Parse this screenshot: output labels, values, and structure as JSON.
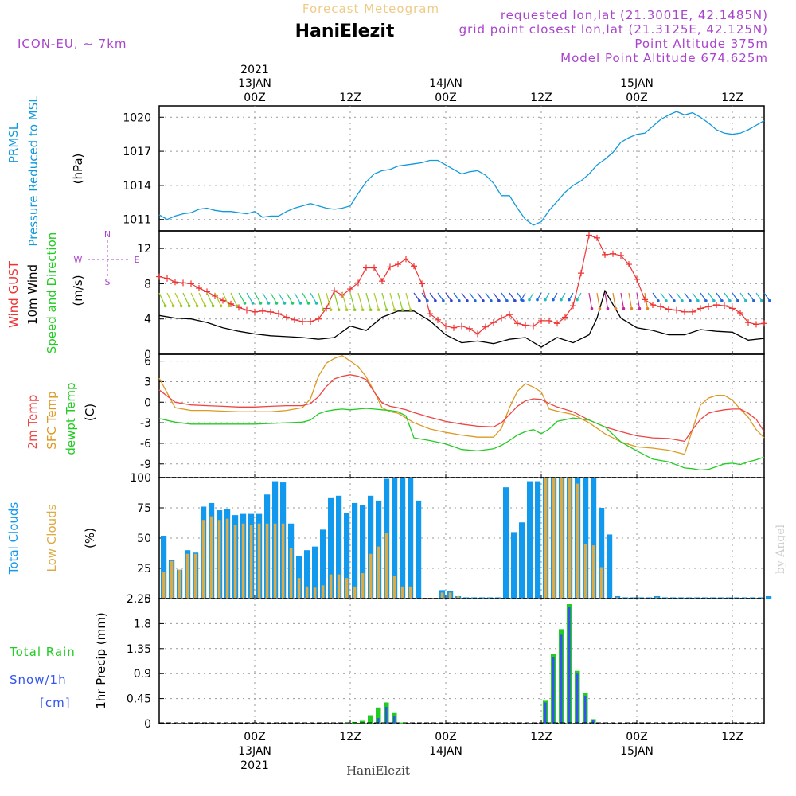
{
  "header": {
    "product": "Forecast Meteogram",
    "site": "HaniElezit",
    "model": "ICON-EU, ~ 7km",
    "requested": "requested lon,lat (21.3001E, 42.1485N)",
    "gridpoint": "grid point closest lon,lat (21.3125E, 42.125N)",
    "point_alt": "Point Altitude 375m",
    "model_alt": "Model Point Altitude 674.625m",
    "footer_site": "HaniElezit",
    "credit": "by Angel"
  },
  "time_axis": {
    "top": [
      {
        "h": 12,
        "line1": "2021",
        "line2": "13JAN",
        "line3": "00Z"
      },
      {
        "h": 24,
        "line3": "12Z"
      },
      {
        "h": 36,
        "line2": "14JAN",
        "line3": "00Z"
      },
      {
        "h": 48,
        "line3": "12Z"
      },
      {
        "h": 60,
        "line2": "15JAN",
        "line3": "00Z"
      },
      {
        "h": 72,
        "line3": "12Z"
      }
    ],
    "bottom": [
      {
        "h": 12,
        "line1": "00Z",
        "line2": "13JAN",
        "line3": "2021"
      },
      {
        "h": 24,
        "line1": "12Z"
      },
      {
        "h": 36,
        "line1": "00Z",
        "line2": "14JAN"
      },
      {
        "h": 48,
        "line1": "12Z"
      },
      {
        "h": 60,
        "line1": "00Z",
        "line2": "15JAN"
      },
      {
        "h": 72,
        "line1": "12Z"
      }
    ]
  },
  "labels": {
    "p1": [
      "PRMSL",
      "Pressure Reduced to MSL",
      "(hPa)"
    ],
    "p2": [
      "Wind GUST",
      "10m Wind",
      "Speed and Direction",
      "(m/s)"
    ],
    "compass": [
      "N",
      "S",
      "W",
      "E"
    ],
    "p3": [
      "2m Temp",
      "SFC Temp",
      "dewpt Temp",
      "(C)"
    ],
    "p4": [
      "Total Clouds",
      "Low Clouds",
      "(%)"
    ],
    "p5": [
      "Total Rain",
      "Snow/1h",
      "[cm]",
      "1hr Precip (mm)"
    ]
  },
  "colors": {
    "pressure": "#1199dd",
    "gust": "#ee3333",
    "wind": "#000000",
    "t2m": "#ee4444",
    "tsfc": "#dd9922",
    "tdew": "#22cc22",
    "clouds_total": "#1199ee",
    "clouds_low": "#ddaa44",
    "rain": "#22cc22",
    "snow": "#3355ee",
    "header_title": "#eecc88",
    "info": "#aa44cc"
  },
  "chart_data": [
    {
      "type": "line",
      "name": "pressure",
      "x_unit": "hours from 12 Jan 12Z",
      "ylim": [
        1010,
        1021
      ],
      "yticks": [
        1011,
        1014,
        1017,
        1020
      ],
      "x": [
        0,
        1,
        2,
        3,
        4,
        5,
        6,
        7,
        8,
        9,
        10,
        11,
        12,
        13,
        14,
        15,
        16,
        17,
        18,
        19,
        20,
        21,
        22,
        23,
        24,
        25,
        26,
        27,
        28,
        29,
        30,
        31,
        32,
        33,
        34,
        35,
        36,
        37,
        38,
        39,
        40,
        41,
        42,
        43,
        44,
        45,
        46,
        47,
        48,
        49,
        50,
        51,
        52,
        53,
        54,
        55,
        56,
        57,
        58,
        59,
        60,
        61,
        62,
        63,
        64,
        65,
        66,
        67,
        68,
        69,
        70,
        71,
        72,
        73,
        74,
        75,
        76
      ],
      "values": [
        1011.4,
        1011.0,
        1011.3,
        1011.5,
        1011.6,
        1011.9,
        1012.0,
        1011.8,
        1011.7,
        1011.7,
        1011.6,
        1011.5,
        1011.7,
        1011.2,
        1011.3,
        1011.3,
        1011.7,
        1012.0,
        1012.2,
        1012.4,
        1012.2,
        1012.0,
        1011.9,
        1012.0,
        1012.2,
        1013.3,
        1014.3,
        1015.0,
        1015.3,
        1015.4,
        1015.7,
        1015.8,
        1015.9,
        1016.0,
        1016.2,
        1016.2,
        1015.8,
        1015.4,
        1015.0,
        1015.2,
        1015.3,
        1014.9,
        1014.2,
        1013.1,
        1013.1,
        1012.0,
        1011.0,
        1010.5,
        1010.8,
        1011.8,
        1012.6,
        1013.4,
        1014.0,
        1014.4,
        1015.0,
        1015.8,
        1016.3,
        1016.9,
        1017.8,
        1018.2,
        1018.5,
        1018.6,
        1019.2,
        1019.8,
        1020.2,
        1020.5,
        1020.2,
        1020.4,
        1020.0,
        1019.5,
        1018.9,
        1018.6,
        1018.5,
        1018.6,
        1018.9,
        1019.3,
        1019.7
      ]
    },
    {
      "type": "line",
      "name": "wind",
      "x_unit": "hours from 12 Jan 12Z",
      "ylim": [
        0,
        14
      ],
      "yticks": [
        0,
        4,
        8,
        12
      ],
      "gust_x": [
        0,
        1,
        2,
        3,
        4,
        5,
        6,
        7,
        8,
        9,
        10,
        11,
        12,
        13,
        14,
        15,
        16,
        17,
        18,
        19,
        20,
        21,
        22,
        23,
        24,
        25,
        26,
        27,
        28,
        29,
        30,
        31,
        32,
        33,
        34,
        35,
        36,
        37,
        38,
        39,
        40,
        41,
        42,
        43,
        44,
        45,
        46,
        47,
        48,
        49,
        50,
        51,
        52,
        53,
        54,
        55,
        56,
        57,
        58,
        59,
        60,
        61,
        62,
        63,
        64,
        65,
        66,
        67,
        68,
        69,
        70,
        71,
        72,
        73,
        74,
        75,
        76
      ],
      "gust": [
        8.8,
        8.6,
        8.2,
        8.1,
        8.0,
        7.5,
        7.1,
        6.6,
        6.1,
        5.7,
        5.3,
        5.0,
        4.8,
        4.9,
        4.8,
        4.6,
        4.2,
        3.9,
        3.7,
        3.7,
        4.0,
        5.2,
        7.2,
        6.7,
        7.4,
        8.1,
        9.8,
        9.8,
        8.3,
        9.9,
        10.2,
        10.8,
        10.0,
        8.0,
        4.6,
        3.9,
        3.2,
        3.0,
        3.2,
        2.9,
        2.3,
        3.1,
        3.6,
        4.1,
        4.5,
        3.5,
        3.3,
        3.2,
        3.8,
        3.8,
        3.5,
        4.2,
        5.5,
        9.2,
        13.5,
        13.2,
        11.3,
        11.4,
        11.2,
        10.2,
        8.5,
        6.2,
        5.6,
        5.4,
        5.1,
        5.0,
        4.8,
        4.8,
        5.2,
        5.4,
        5.6,
        5.5,
        5.2,
        4.7,
        3.6,
        3.4,
        3.5
      ],
      "speed_x": [
        0,
        2,
        4,
        6,
        8,
        10,
        12,
        14,
        16,
        18,
        20,
        22,
        24,
        26,
        28,
        30,
        32,
        34,
        36,
        38,
        40,
        42,
        44,
        46,
        48,
        50,
        52,
        54,
        55,
        56,
        58,
        60,
        62,
        64,
        66,
        68,
        70,
        72,
        74,
        76
      ],
      "speed": [
        4.4,
        4.1,
        4.0,
        3.6,
        3.0,
        2.6,
        2.3,
        2.1,
        2.0,
        1.9,
        1.7,
        1.9,
        3.2,
        2.7,
        4.2,
        4.9,
        4.9,
        3.8,
        2.2,
        1.3,
        1.5,
        1.2,
        1.7,
        1.9,
        0.8,
        1.9,
        1.3,
        2.2,
        4.1,
        7.2,
        4.1,
        3.0,
        2.7,
        2.2,
        2.2,
        2.8,
        2.6,
        2.5,
        1.6,
        1.8
      ]
    },
    {
      "type": "line",
      "name": "temperature",
      "x_unit": "hours from 12 Jan 12Z",
      "ylim": [
        -11,
        7
      ],
      "yticks": [
        -9,
        -6,
        -3,
        0,
        3,
        6
      ],
      "x": [
        0,
        2,
        4,
        6,
        8,
        10,
        12,
        14,
        16,
        18,
        19,
        20,
        21,
        22,
        23,
        24,
        25,
        26,
        27,
        28,
        29,
        30,
        31,
        32,
        34,
        36,
        38,
        40,
        42,
        43,
        44,
        45,
        46,
        47,
        48,
        49,
        50,
        52,
        54,
        56,
        58,
        60,
        62,
        64,
        66,
        67,
        68,
        69,
        70,
        71,
        72,
        73,
        74,
        75,
        76
      ],
      "t2m": [
        1.8,
        0.0,
        -0.4,
        -0.5,
        -0.6,
        -0.7,
        -0.7,
        -0.6,
        -0.5,
        -0.5,
        -0.2,
        0.8,
        2.3,
        3.4,
        3.8,
        4.0,
        3.8,
        3.3,
        1.5,
        -0.1,
        -0.6,
        -0.8,
        -1.1,
        -1.5,
        -2.2,
        -2.8,
        -3.2,
        -3.5,
        -3.6,
        -3.0,
        -1.8,
        -0.6,
        0.2,
        0.5,
        0.4,
        -0.2,
        -0.7,
        -1.4,
        -2.6,
        -3.6,
        -4.3,
        -4.9,
        -5.2,
        -5.3,
        -5.7,
        -4.0,
        -2.5,
        -1.6,
        -1.3,
        -1.1,
        -1.0,
        -1.0,
        -1.6,
        -2.5,
        -4.3
      ],
      "tsfc": [
        3.5,
        -0.8,
        -1.2,
        -1.2,
        -1.3,
        -1.4,
        -1.4,
        -1.4,
        -1.2,
        -0.8,
        0.5,
        3.8,
        5.7,
        6.4,
        6.8,
        6.0,
        5.2,
        3.7,
        1.6,
        -0.8,
        -1.4,
        -1.6,
        -2.3,
        -3.0,
        -3.9,
        -4.4,
        -4.8,
        -5.1,
        -5.1,
        -3.8,
        -0.8,
        1.6,
        2.7,
        2.2,
        1.5,
        -1.0,
        -1.3,
        -1.8,
        -3.0,
        -4.6,
        -5.8,
        -6.5,
        -6.7,
        -7.0,
        -7.6,
        -4.0,
        -0.4,
        0.6,
        1.0,
        1.0,
        0.3,
        -1.0,
        -2.2,
        -4.0,
        -5.2
      ],
      "tdew": [
        -2.4,
        -2.9,
        -3.2,
        -3.2,
        -3.2,
        -3.2,
        -3.2,
        -3.1,
        -3.0,
        -2.9,
        -2.6,
        -1.7,
        -1.3,
        -1.1,
        -1.0,
        -1.1,
        -1.0,
        -0.9,
        -1.0,
        -1.1,
        -1.2,
        -1.4,
        -2.0,
        -5.2,
        -5.6,
        -6.1,
        -6.9,
        -7.1,
        -6.8,
        -6.3,
        -5.6,
        -4.8,
        -4.3,
        -4.0,
        -4.6,
        -3.9,
        -2.8,
        -2.3,
        -2.6,
        -3.6,
        -5.8,
        -7.1,
        -8.3,
        -8.7,
        -9.6,
        -9.7,
        -9.9,
        -9.8,
        -9.4,
        -9.0,
        -8.9,
        -9.1,
        -8.7,
        -8.4,
        -8.0
      ]
    },
    {
      "type": "bar",
      "name": "clouds",
      "x_unit": "hours from 12 Jan 12Z",
      "ylim": [
        0,
        100
      ],
      "yticks": [
        0,
        25,
        50,
        75,
        100
      ],
      "x": [
        0,
        1,
        2,
        3,
        4,
        5,
        6,
        7,
        8,
        9,
        10,
        11,
        12,
        13,
        14,
        15,
        16,
        17,
        18,
        19,
        20,
        21,
        22,
        23,
        24,
        25,
        26,
        27,
        28,
        29,
        30,
        31,
        32,
        33,
        34,
        35,
        36,
        37,
        38,
        39,
        40,
        41,
        42,
        43,
        44,
        45,
        46,
        47,
        48,
        49,
        50,
        51,
        52,
        53,
        54,
        55,
        56,
        57,
        58,
        59,
        60,
        61,
        62,
        63,
        64,
        65,
        66,
        67,
        68,
        69,
        70,
        71,
        72,
        73,
        74,
        75,
        76
      ],
      "total": [
        52,
        32,
        24,
        40,
        38,
        76,
        79,
        73,
        74,
        69,
        70,
        70,
        70,
        86,
        97,
        96,
        62,
        35,
        40,
        43,
        57,
        83,
        85,
        71,
        79,
        77,
        85,
        81,
        99,
        100,
        100,
        100,
        81,
        0,
        0,
        7,
        6,
        2,
        1,
        1,
        1,
        1,
        1,
        92,
        55,
        63,
        97,
        97,
        100,
        100,
        100,
        100,
        100,
        100,
        100,
        75,
        53,
        2,
        1,
        1,
        1,
        1,
        2,
        1,
        1,
        1,
        1,
        1,
        1,
        1,
        1,
        1,
        1,
        1,
        1,
        1,
        2
      ],
      "low": [
        22,
        31,
        24,
        37,
        37,
        65,
        68,
        65,
        66,
        61,
        62,
        61,
        62,
        62,
        62,
        62,
        42,
        17,
        10,
        9,
        11,
        20,
        20,
        17,
        10,
        21,
        37,
        43,
        54,
        19,
        10,
        10,
        0,
        0,
        0,
        5,
        5,
        2,
        0,
        0,
        0,
        0,
        0,
        0,
        0,
        0,
        0,
        0,
        100,
        100,
        100,
        100,
        95,
        45,
        44,
        26,
        0,
        1,
        0,
        0,
        0,
        0,
        1,
        0,
        0,
        0,
        0,
        0,
        0,
        0,
        0,
        0,
        0,
        0,
        0,
        0,
        0
      ]
    },
    {
      "type": "bar",
      "name": "precip",
      "x_unit": "hours from 12 Jan 12Z",
      "ylim": [
        0,
        2.25
      ],
      "yticks": [
        0,
        0.45,
        0.9,
        1.35,
        1.8,
        2.25
      ],
      "ytick_labels": [
        "0",
        "0.45",
        "0.9",
        "1.35",
        "1.8",
        "2.25"
      ],
      "x": [
        23,
        24,
        25,
        26,
        27,
        28,
        29,
        30,
        47,
        48,
        49,
        50,
        51,
        52,
        53,
        54
      ],
      "rain": [
        0.01,
        0.03,
        0.05,
        0.15,
        0.29,
        0.38,
        0.19,
        0.02,
        0.0,
        0.41,
        1.25,
        1.7,
        2.15,
        0.95,
        0.55,
        0.08
      ],
      "snow": [
        0.0,
        0.0,
        0.0,
        0.0,
        0.1,
        0.3,
        0.14,
        0.0,
        0.0,
        0.38,
        1.2,
        1.6,
        2.1,
        0.9,
        0.5,
        0.07
      ]
    }
  ]
}
